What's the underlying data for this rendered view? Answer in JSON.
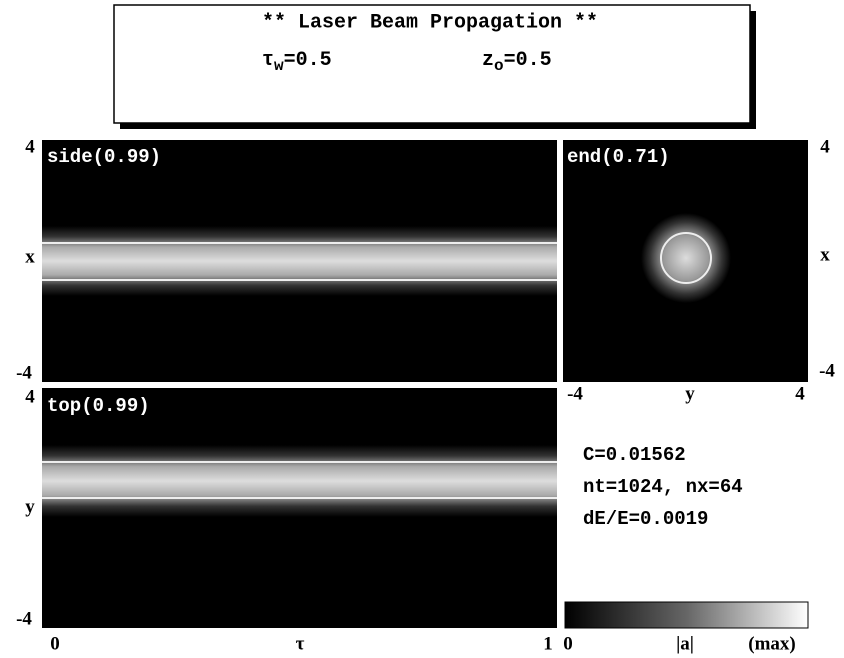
{
  "header": {
    "title": "** Laser Beam Propagation **",
    "params": [
      {
        "base": "τ",
        "sub": "w",
        "rest": "=0.5"
      },
      {
        "base": "z",
        "sub": "o",
        "rest": "=0.5"
      }
    ]
  },
  "panels": {
    "side": "side(0.99)",
    "end": "end(0.71)",
    "top": "top(0.99)"
  },
  "axes": {
    "left_top": [
      "4",
      "x",
      "-4"
    ],
    "right": [
      "4",
      "x",
      "-4"
    ],
    "end_bottom": [
      "-4",
      "y",
      "4"
    ],
    "left_bottom": [
      "4",
      "y",
      "-4"
    ],
    "bottom": [
      "0",
      "τ",
      "1"
    ],
    "colorbar": [
      "0",
      "|a|",
      "(max)"
    ]
  },
  "info": [
    "C=0.01562",
    "nt=1024, nx=64",
    "dE/E=0.0019"
  ]
}
